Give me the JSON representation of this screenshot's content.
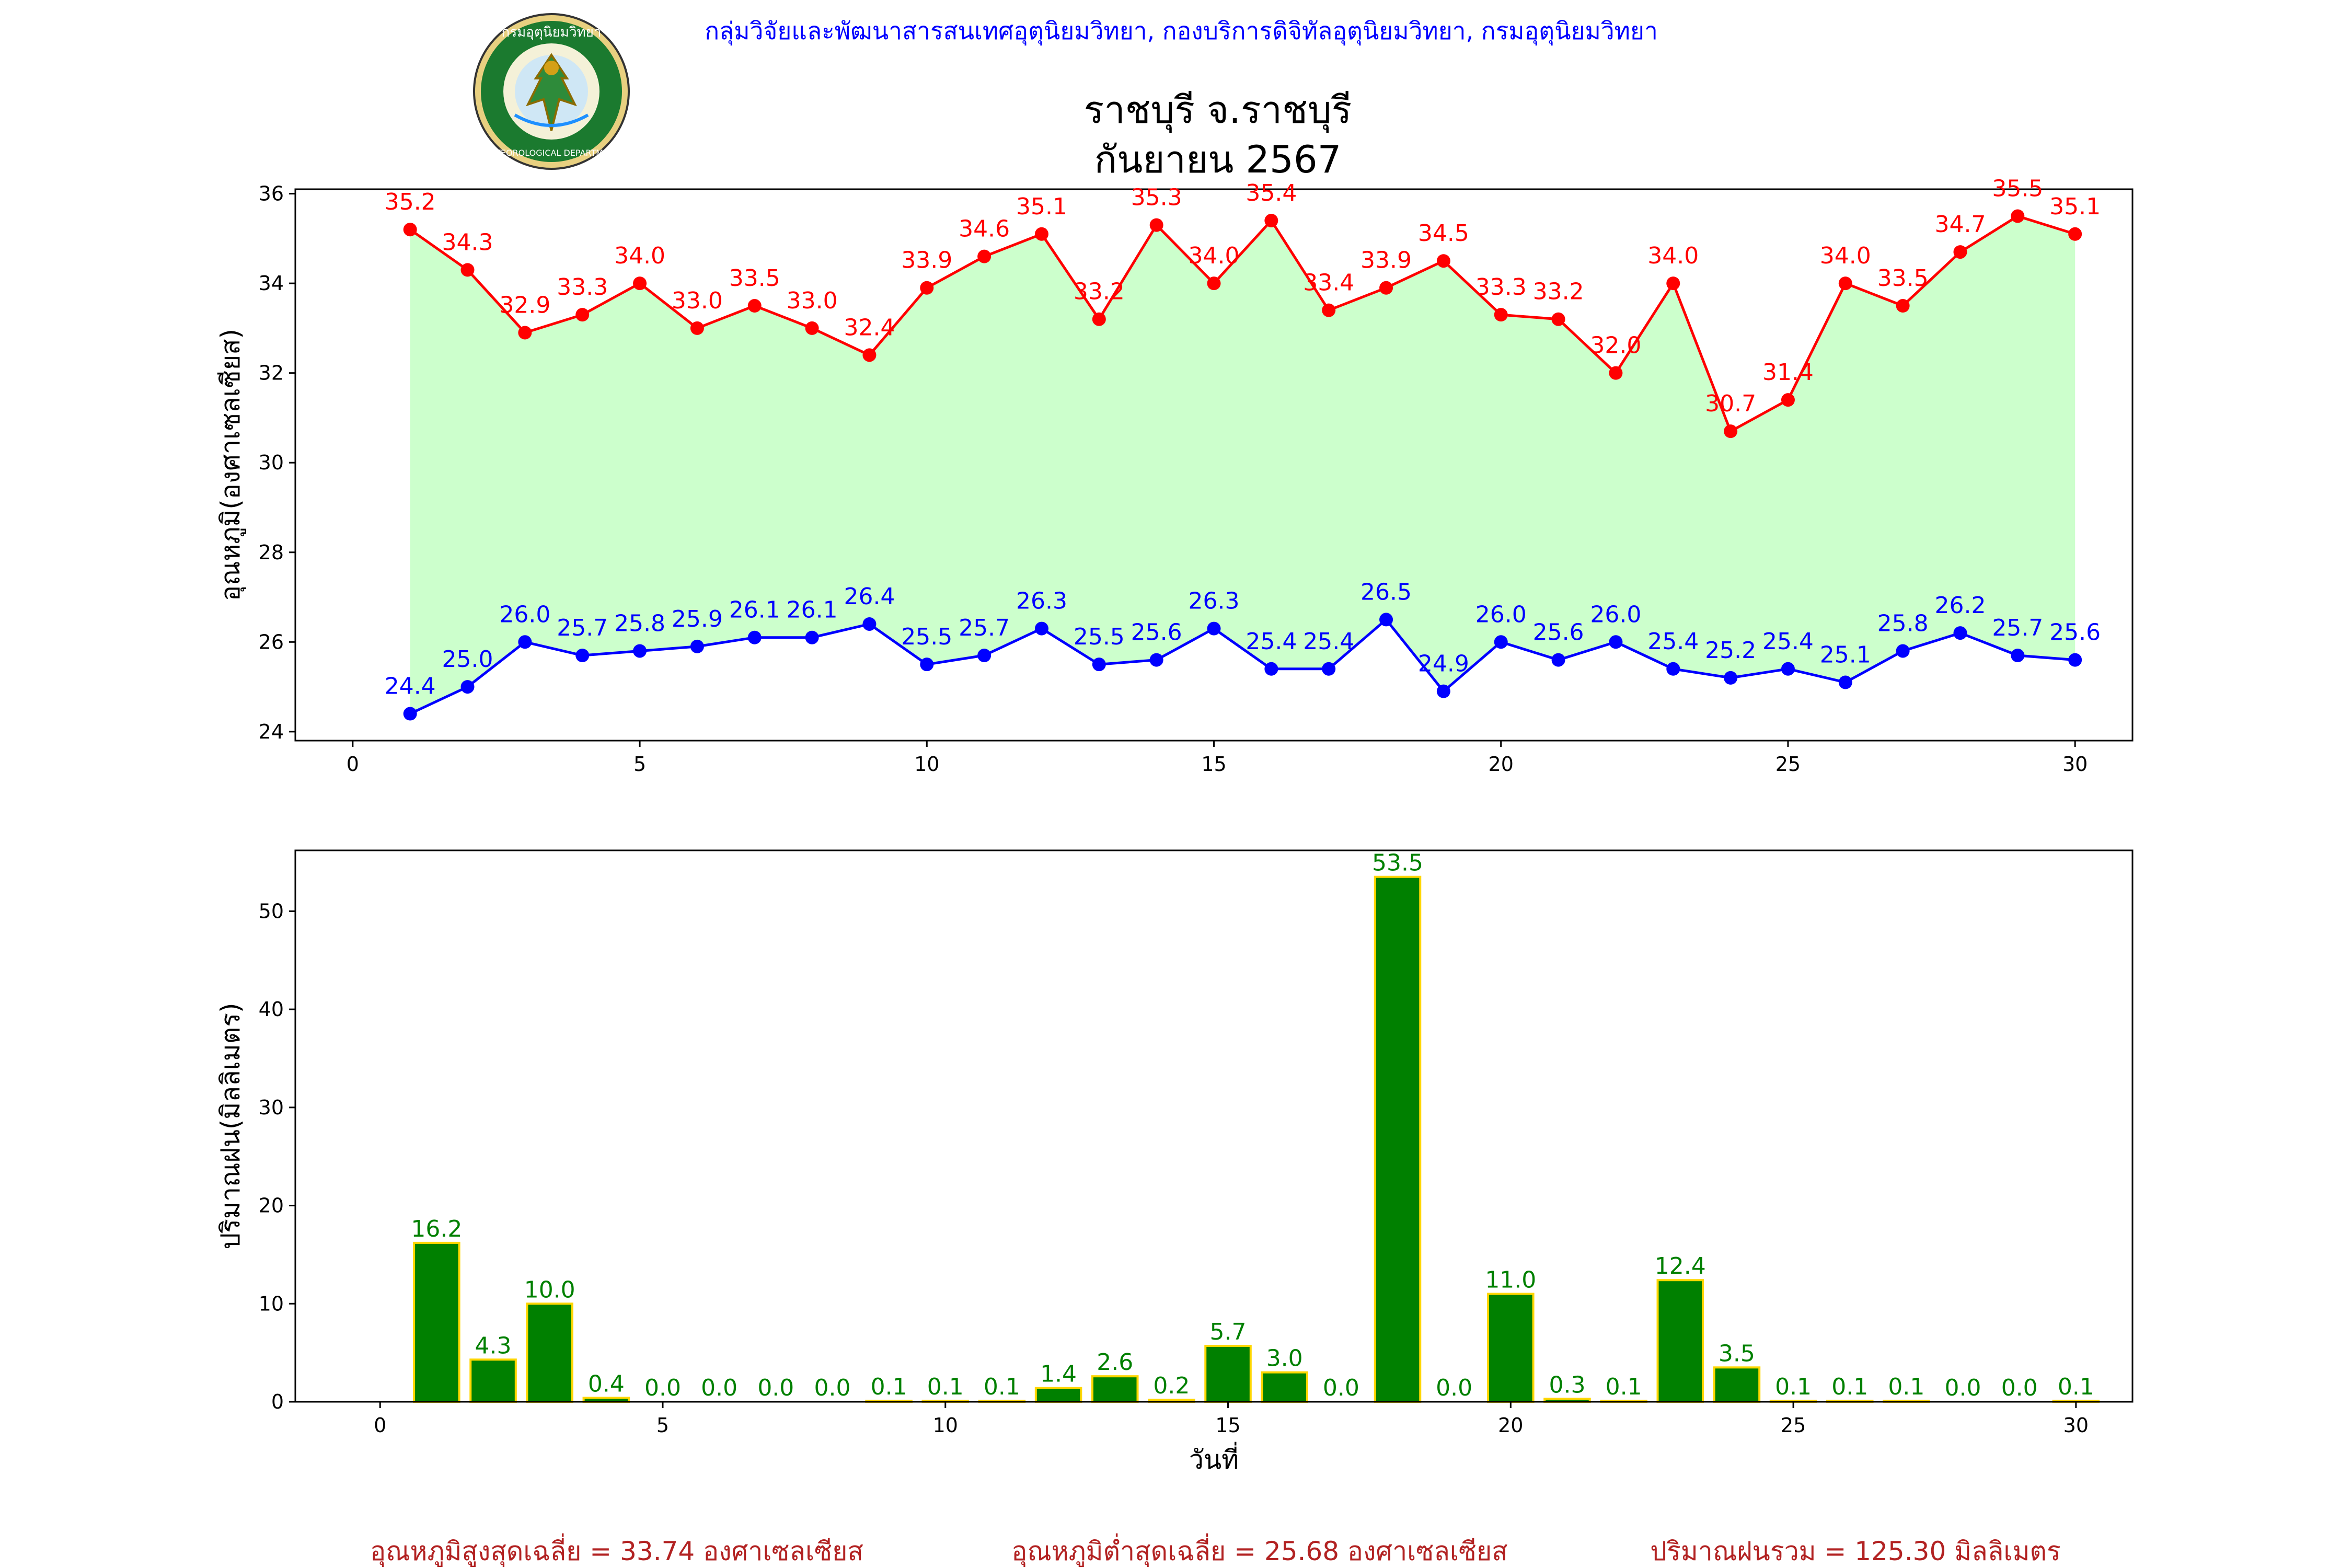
{
  "header": {
    "agency": "กลุ่มวิจัยและพัฒนาสารสนเทศอุตุนิยมวิทยา, กองบริการดิจิทัลอุตุนิยมวิทยา, กรมอุตุนิยมวิทยา",
    "logo_text_top": "กรมอุตุนิยมวิทยา",
    "logo_text_bottom": "METEOROLOGICAL DEPARTMENT",
    "title_line1": "ราชบุรี จ.ราชบุรี",
    "title_line2": "กันยายน 2567"
  },
  "colors": {
    "max_line": "#ff0000",
    "min_line": "#0000ff",
    "fill": "#ccffcc",
    "bar_fill": "#008000",
    "bar_edge": "#ffd700",
    "bar_label": "#008000",
    "agency_text": "#0000ff",
    "footer_text": "#b22222"
  },
  "chart_data": [
    {
      "type": "line",
      "ylabel": "อุณหภูมิ(องศาเซลเซียส)",
      "xlim": [
        -1,
        31
      ],
      "ylim": [
        23.8,
        36.1
      ],
      "xticks": [
        0,
        5,
        10,
        15,
        20,
        25,
        30
      ],
      "yticks": [
        24,
        26,
        28,
        30,
        32,
        34,
        36
      ],
      "x": [
        1,
        2,
        3,
        4,
        5,
        6,
        7,
        8,
        9,
        10,
        11,
        12,
        13,
        14,
        15,
        16,
        17,
        18,
        19,
        20,
        21,
        22,
        23,
        24,
        25,
        26,
        27,
        28,
        29,
        30
      ],
      "series": [
        {
          "key": "max",
          "values": [
            35.2,
            34.3,
            32.9,
            33.3,
            34.0,
            33.0,
            33.5,
            33.0,
            32.4,
            33.9,
            34.6,
            35.1,
            33.2,
            35.3,
            34.0,
            35.4,
            33.4,
            33.9,
            34.5,
            33.3,
            33.2,
            32.0,
            34.0,
            30.7,
            31.4,
            34.0,
            33.5,
            34.7,
            35.5,
            35.1
          ]
        },
        {
          "key": "min",
          "values": [
            24.4,
            25.0,
            26.0,
            25.7,
            25.8,
            25.9,
            26.1,
            26.1,
            26.4,
            25.5,
            25.7,
            26.3,
            25.5,
            25.6,
            26.3,
            25.4,
            25.4,
            26.5,
            24.9,
            26.0,
            25.6,
            26.0,
            25.4,
            25.2,
            25.4,
            25.1,
            25.8,
            26.2,
            25.7,
            25.6
          ]
        }
      ]
    },
    {
      "type": "bar",
      "xlabel": "วันที่",
      "ylabel": "ปริมาณฝน(มิลลิเมตร)",
      "xlim": [
        -1.5,
        31
      ],
      "ylim": [
        0,
        56.2
      ],
      "xticks": [
        0,
        5,
        10,
        15,
        20,
        25,
        30
      ],
      "yticks": [
        0,
        10,
        20,
        30,
        40,
        50
      ],
      "x": [
        1,
        2,
        3,
        4,
        5,
        6,
        7,
        8,
        9,
        10,
        11,
        12,
        13,
        14,
        15,
        16,
        17,
        18,
        19,
        20,
        21,
        22,
        23,
        24,
        25,
        26,
        27,
        28,
        29,
        30
      ],
      "values": [
        16.2,
        4.3,
        10.0,
        0.4,
        0.0,
        0.0,
        0.0,
        0.0,
        0.1,
        0.1,
        0.1,
        1.4,
        2.6,
        0.2,
        5.7,
        3.0,
        0.0,
        53.5,
        0.0,
        11.0,
        0.3,
        0.1,
        12.4,
        3.5,
        0.1,
        0.1,
        0.1,
        0.0,
        0.0,
        0.1
      ]
    }
  ],
  "footer": {
    "avg_max": "อุณหภูมิสูงสุดเฉลี่ย = 33.74 องศาเซลเซียส",
    "avg_min": "อุณหภูมิต่ำสุดเฉลี่ย = 25.68 องศาเซลเซียส",
    "total_rain": "ปริมาณฝนรวม = 125.30 มิลลิเมตร"
  }
}
